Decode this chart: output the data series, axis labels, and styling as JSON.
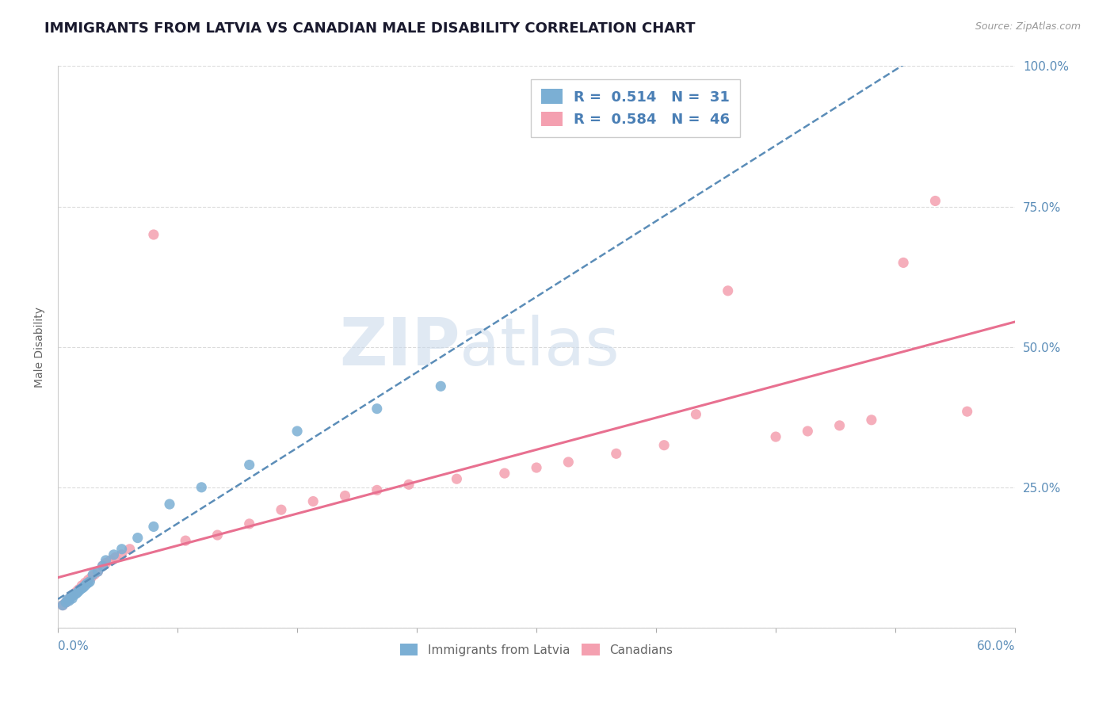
{
  "title": "IMMIGRANTS FROM LATVIA VS CANADIAN MALE DISABILITY CORRELATION CHART",
  "source": "Source: ZipAtlas.com",
  "ylabel": "Male Disability",
  "xmin": 0.0,
  "xmax": 0.6,
  "ymin": 0.0,
  "ymax": 1.0,
  "yticks": [
    0.0,
    0.25,
    0.5,
    0.75,
    1.0
  ],
  "ytick_labels": [
    "",
    "25.0%",
    "50.0%",
    "75.0%",
    "100.0%"
  ],
  "watermark_zip": "ZIP",
  "watermark_atlas": "atlas",
  "latvia_R": 0.514,
  "latvia_N": 31,
  "canada_R": 0.584,
  "canada_N": 46,
  "latvia_color": "#7bafd4",
  "canada_color": "#f4a0b0",
  "latvia_line_color": "#5b8db8",
  "canada_line_color": "#e87090",
  "background_color": "#ffffff",
  "grid_color": "#cccccc",
  "title_color": "#1a1a2e",
  "axis_label_color": "#5b8db8",
  "legend_R_color": "#4a7fb5",
  "latvia_scatter_x": [
    0.003,
    0.005,
    0.006,
    0.007,
    0.008,
    0.009,
    0.01,
    0.011,
    0.012,
    0.013,
    0.014,
    0.015,
    0.016,
    0.017,
    0.018,
    0.019,
    0.02,
    0.022,
    0.025,
    0.028,
    0.03,
    0.035,
    0.04,
    0.05,
    0.06,
    0.07,
    0.09,
    0.12,
    0.15,
    0.2,
    0.24
  ],
  "latvia_scatter_y": [
    0.04,
    0.045,
    0.05,
    0.048,
    0.055,
    0.052,
    0.058,
    0.06,
    0.062,
    0.065,
    0.068,
    0.07,
    0.072,
    0.075,
    0.078,
    0.08,
    0.082,
    0.095,
    0.1,
    0.11,
    0.12,
    0.13,
    0.14,
    0.16,
    0.18,
    0.22,
    0.25,
    0.29,
    0.35,
    0.39,
    0.43
  ],
  "canada_scatter_x": [
    0.003,
    0.005,
    0.006,
    0.007,
    0.008,
    0.009,
    0.01,
    0.011,
    0.012,
    0.013,
    0.015,
    0.017,
    0.019,
    0.021,
    0.023,
    0.025,
    0.028,
    0.03,
    0.033,
    0.036,
    0.04,
    0.045,
    0.06,
    0.08,
    0.1,
    0.12,
    0.14,
    0.16,
    0.18,
    0.2,
    0.22,
    0.25,
    0.28,
    0.3,
    0.32,
    0.35,
    0.38,
    0.4,
    0.42,
    0.45,
    0.47,
    0.49,
    0.51,
    0.53,
    0.55,
    0.57
  ],
  "canada_scatter_y": [
    0.04,
    0.045,
    0.048,
    0.05,
    0.055,
    0.058,
    0.06,
    0.062,
    0.065,
    0.068,
    0.075,
    0.08,
    0.085,
    0.09,
    0.095,
    0.1,
    0.11,
    0.115,
    0.12,
    0.125,
    0.13,
    0.14,
    0.7,
    0.155,
    0.165,
    0.185,
    0.21,
    0.225,
    0.235,
    0.245,
    0.255,
    0.265,
    0.275,
    0.285,
    0.295,
    0.31,
    0.325,
    0.38,
    0.6,
    0.34,
    0.35,
    0.36,
    0.37,
    0.65,
    0.76,
    0.385
  ]
}
